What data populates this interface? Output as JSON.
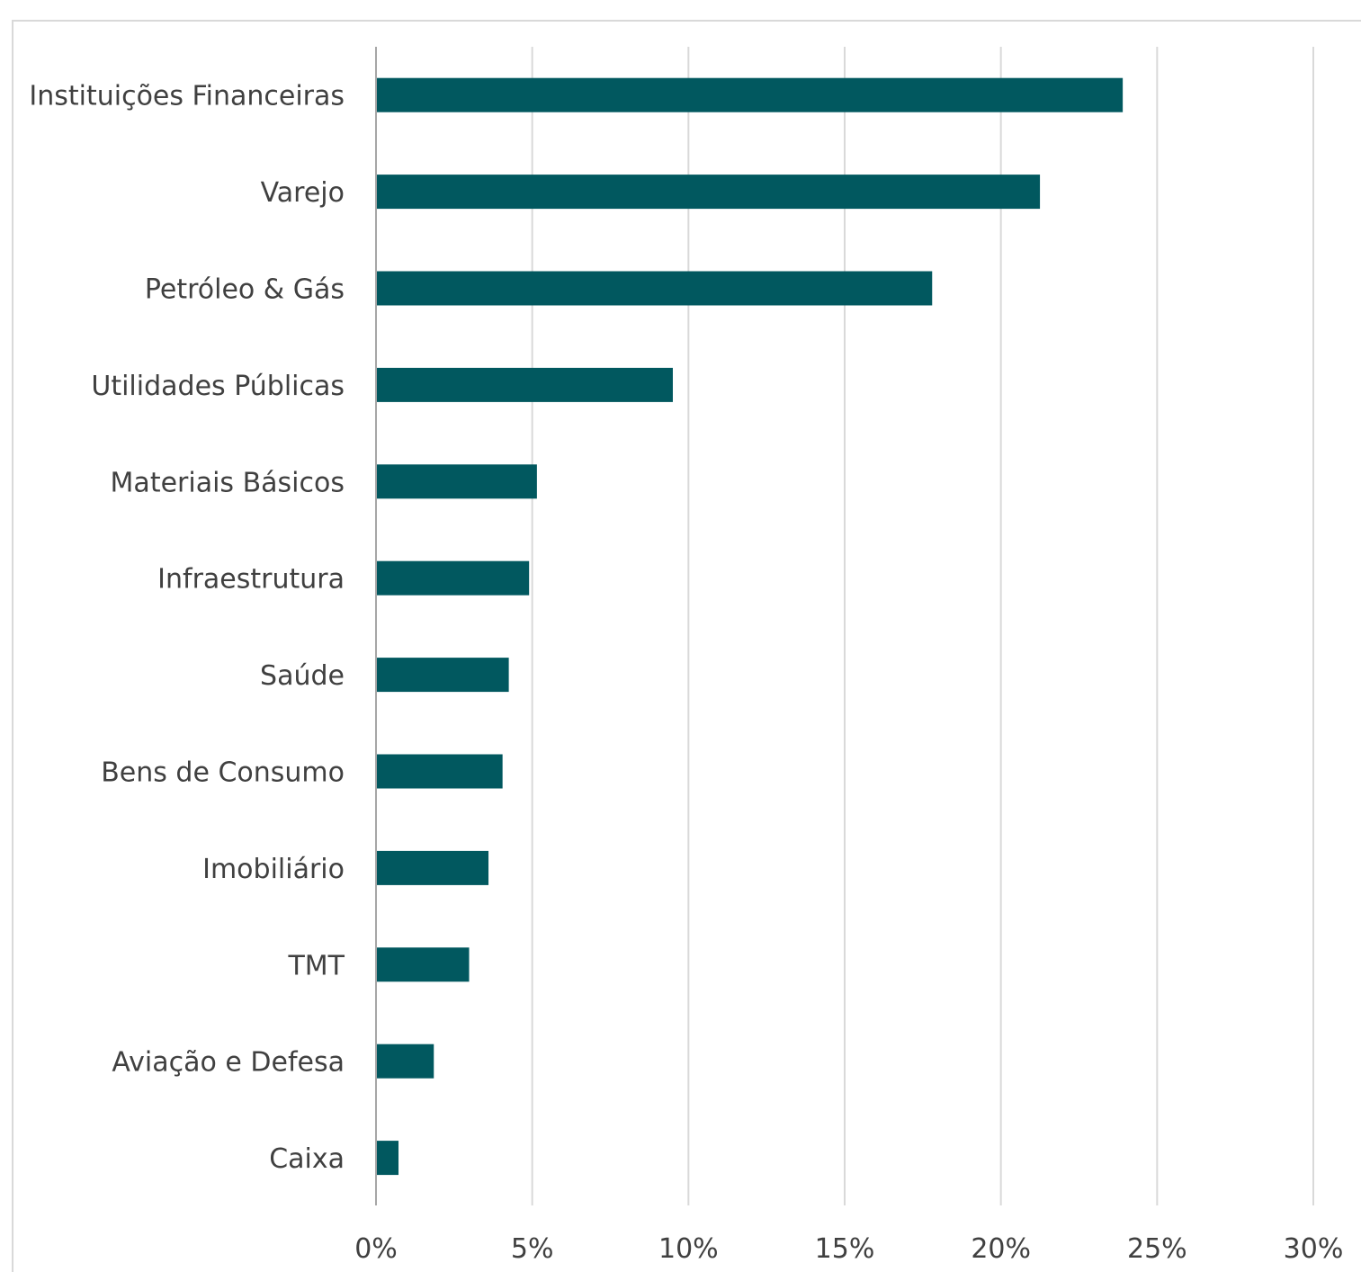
{
  "chart_data": {
    "type": "bar",
    "orientation": "horizontal",
    "categories": [
      "Instituições Financeiras",
      "Varejo",
      "Petróleo & Gás",
      "Utilidades Públicas",
      "Materiais Básicos",
      "Infraestrutura",
      "Saúde",
      "Bens de Consumo",
      "Imobiliário",
      "TMT",
      "Aviação e Defesa",
      "Caixa"
    ],
    "values": [
      23.9,
      21.25,
      17.8,
      9.5,
      5.15,
      4.9,
      4.25,
      4.05,
      3.6,
      2.98,
      1.85,
      0.72
    ],
    "xlim": [
      0,
      30
    ],
    "xticks": [
      0,
      5,
      10,
      15,
      20,
      25,
      30
    ],
    "xtick_labels": [
      "0%",
      "5%",
      "10%",
      "15%",
      "20%",
      "25%",
      "30%"
    ],
    "value_unit": "%",
    "title": "",
    "xlabel": "",
    "ylabel": "",
    "grid": "vertical",
    "legend": "none",
    "colors": {
      "bar": "#01585F",
      "grid": "#d9d9d9",
      "axis": "#a6a6a6",
      "text": "#404040"
    }
  }
}
